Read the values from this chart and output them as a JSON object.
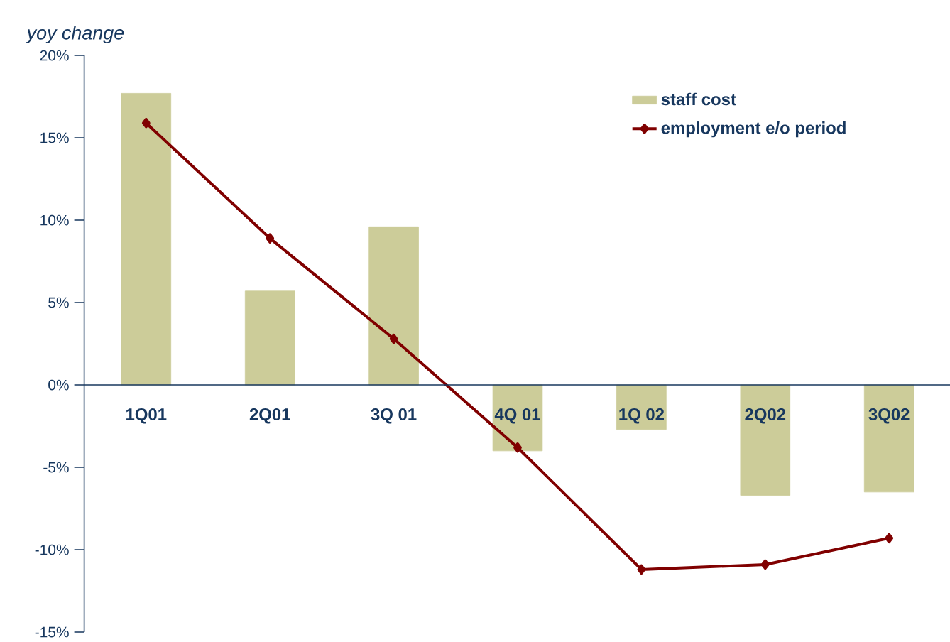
{
  "chart_data": {
    "type": "bar",
    "ylabel": "yoy change",
    "categories": [
      "1Q01",
      "2Q01",
      "3Q 01",
      "4Q 01",
      "1Q 02",
      "2Q02",
      "3Q02"
    ],
    "series": [
      {
        "name": "staff cost",
        "color": "#cccc99",
        "values": [
          17.7,
          5.7,
          9.6,
          -4.0,
          -2.7,
          -6.7,
          -6.5
        ]
      },
      {
        "name": "employment e/o period",
        "type": "line",
        "color": "#800000",
        "marker": "diamond",
        "values": [
          15.9,
          8.9,
          2.8,
          -3.8,
          -11.2,
          -10.9,
          -9.3
        ]
      }
    ],
    "ylim": [
      -15,
      20
    ],
    "yticks": [
      {
        "value": -15,
        "label": "-15%"
      },
      {
        "value": -10,
        "label": "-10%"
      },
      {
        "value": -5,
        "label": "-5%"
      },
      {
        "value": 0,
        "label": "0%"
      },
      {
        "value": 5,
        "label": "5%"
      },
      {
        "value": 10,
        "label": "10%"
      },
      {
        "value": 15,
        "label": "15%"
      },
      {
        "value": 20,
        "label": "20%"
      }
    ],
    "grid": false,
    "legend": "top right"
  }
}
